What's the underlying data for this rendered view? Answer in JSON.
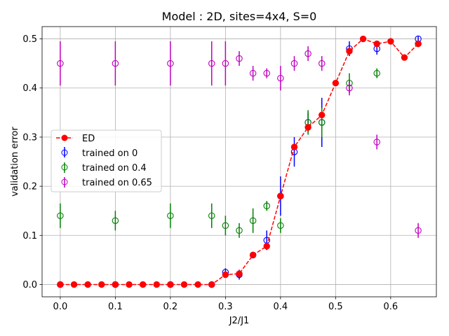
{
  "chart_data": {
    "type": "scatter",
    "title": "Model : 2D, sites=4x4, S=0",
    "xlabel": "J2/J1",
    "ylabel": "validation error",
    "xlim": [
      -0.033,
      0.683
    ],
    "ylim": [
      -0.025,
      0.525
    ],
    "xticks": [
      0.0,
      0.1,
      0.2,
      0.3,
      0.4,
      0.5,
      0.6
    ],
    "xtick_labels": [
      "0.0",
      "0.1",
      "0.2",
      "0.3",
      "0.4",
      "0.5",
      "0.6"
    ],
    "yticks": [
      0.0,
      0.1,
      0.2,
      0.3,
      0.4,
      0.5
    ],
    "ytick_labels": [
      "0.0",
      "0.1",
      "0.2",
      "0.3",
      "0.4",
      "0.5"
    ],
    "grid": true,
    "legend_position": "center-left",
    "series": [
      {
        "name": "ED",
        "style": "line-dashed-filled-markers",
        "color": "#ff0000",
        "x": [
          0.0,
          0.025,
          0.05,
          0.075,
          0.1,
          0.125,
          0.15,
          0.175,
          0.2,
          0.225,
          0.25,
          0.275,
          0.3,
          0.325,
          0.35,
          0.375,
          0.4,
          0.425,
          0.45,
          0.475,
          0.5,
          0.525,
          0.55,
          0.575,
          0.6,
          0.625,
          0.65
        ],
        "y": [
          0.0,
          0.0,
          0.0,
          0.0,
          0.0,
          0.0,
          0.0,
          0.0,
          0.0,
          0.0,
          0.0,
          0.0,
          0.02,
          0.022,
          0.06,
          0.078,
          0.18,
          0.28,
          0.32,
          0.345,
          0.41,
          0.475,
          0.5,
          0.49,
          0.495,
          0.462,
          0.49
        ]
      },
      {
        "name": "trained on 0",
        "style": "errorbar-open-markers",
        "color": "#0000ff",
        "x": [
          0.0,
          0.1,
          0.2,
          0.275,
          0.3,
          0.325,
          0.35,
          0.375,
          0.4,
          0.425,
          0.45,
          0.475,
          0.525,
          0.575,
          0.65
        ],
        "y": [
          0.0,
          0.0,
          0.0,
          0.0,
          0.025,
          0.02,
          0.06,
          0.09,
          0.18,
          0.27,
          0.33,
          0.33,
          0.48,
          0.48,
          0.5
        ],
        "err": [
          0.0,
          0.0,
          0.0,
          0.0,
          0.008,
          0.01,
          0.005,
          0.02,
          0.04,
          0.03,
          0.02,
          0.05,
          0.015,
          0.012,
          0.005
        ]
      },
      {
        "name": "trained on 0.4",
        "style": "errorbar-open-markers",
        "color": "#008000",
        "x": [
          0.0,
          0.1,
          0.2,
          0.275,
          0.3,
          0.325,
          0.35,
          0.375,
          0.4,
          0.45,
          0.475,
          0.525,
          0.575,
          0.65
        ],
        "y": [
          0.14,
          0.13,
          0.14,
          0.14,
          0.12,
          0.11,
          0.13,
          0.16,
          0.12,
          0.33,
          0.33,
          0.41,
          0.43,
          0.49
        ],
        "err": [
          0.025,
          0.02,
          0.025,
          0.025,
          0.02,
          0.015,
          0.025,
          0.01,
          0.015,
          0.025,
          0.03,
          0.02,
          0.01,
          0.005
        ]
      },
      {
        "name": "trained on 0.65",
        "style": "errorbar-open-markers",
        "color": "#bf00bf",
        "x": [
          0.0,
          0.1,
          0.2,
          0.275,
          0.3,
          0.325,
          0.35,
          0.375,
          0.4,
          0.425,
          0.45,
          0.475,
          0.525,
          0.575,
          0.65
        ],
        "y": [
          0.45,
          0.45,
          0.45,
          0.45,
          0.45,
          0.46,
          0.43,
          0.43,
          0.42,
          0.45,
          0.47,
          0.45,
          0.4,
          0.29,
          0.11
        ],
        "err": [
          0.045,
          0.045,
          0.045,
          0.045,
          0.045,
          0.015,
          0.015,
          0.01,
          0.025,
          0.015,
          0.015,
          0.015,
          0.015,
          0.015,
          0.015
        ]
      }
    ]
  }
}
